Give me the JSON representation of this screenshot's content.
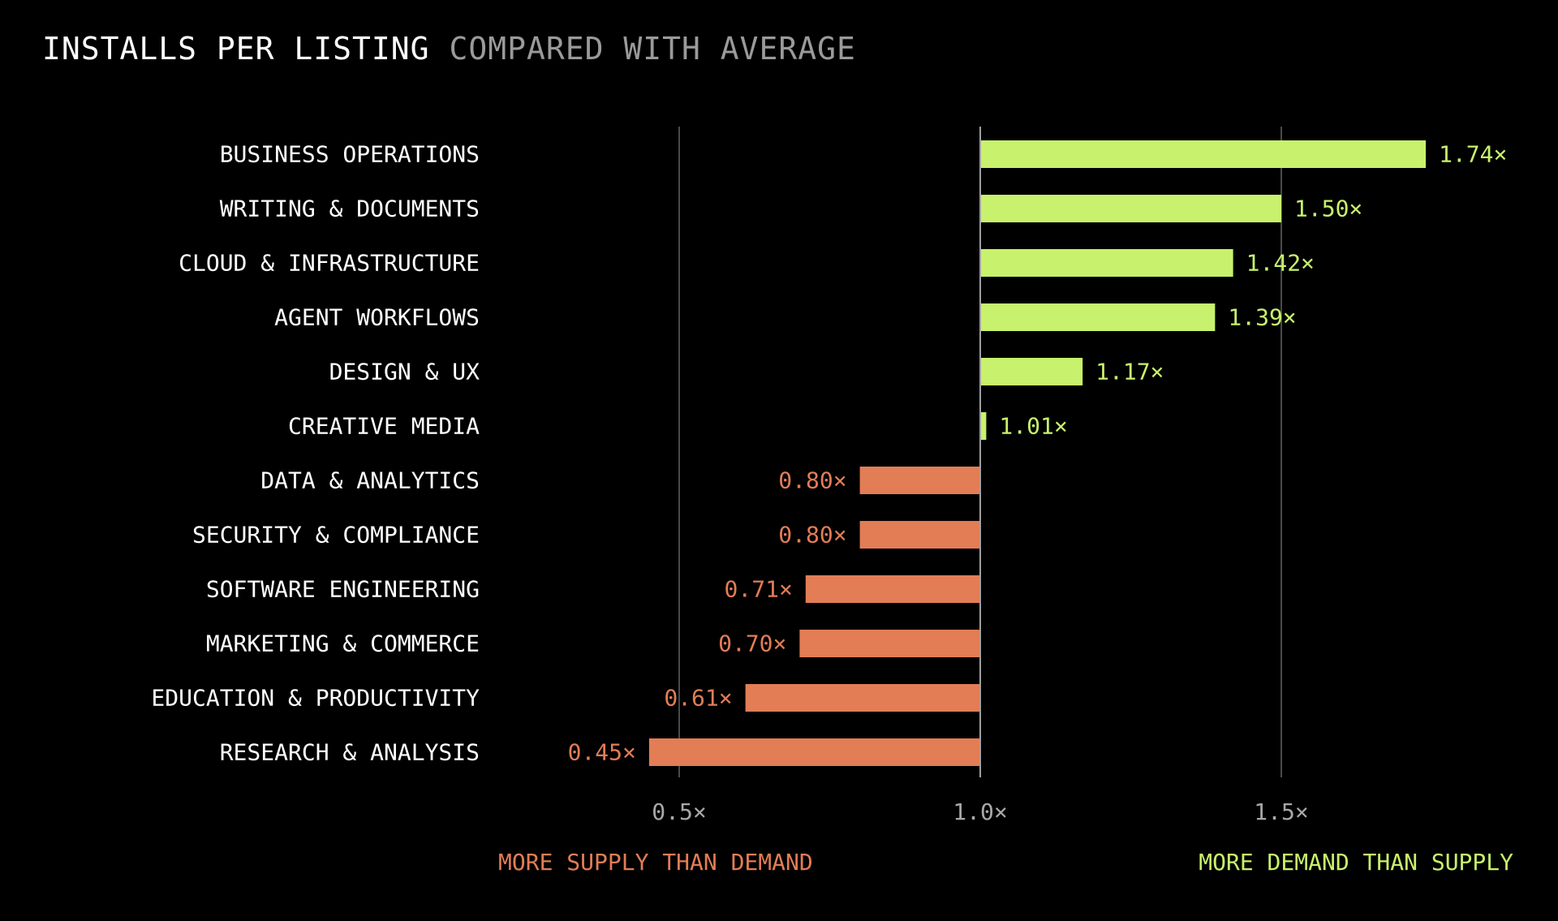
{
  "colors": {
    "background": "#000000",
    "positive": "#c8f26d",
    "negative": "#e27d56",
    "gridline": "#4a4a4a",
    "baseline": "#a0a0a0",
    "title": "#ffffff",
    "subtitle": "#9a9a9a",
    "tick": "#a8a8a8",
    "category": "#ffffff"
  },
  "chart_data": {
    "type": "bar",
    "orientation": "horizontal",
    "title": "INSTALLS PER LISTING",
    "subtitle": "COMPARED WITH AVERAGE",
    "baseline": 1.0,
    "xlim": [
      0.0,
      1.74
    ],
    "xticks": [
      0.5,
      1.0,
      1.5
    ],
    "xtick_labels": [
      "0.5×",
      "1.0×",
      "1.5×"
    ],
    "grid": true,
    "categories": [
      "BUSINESS OPERATIONS",
      "WRITING & DOCUMENTS",
      "CLOUD & INFRASTRUCTURE",
      "AGENT WORKFLOWS",
      "DESIGN & UX",
      "CREATIVE MEDIA",
      "DATA & ANALYTICS",
      "SECURITY & COMPLIANCE",
      "SOFTWARE ENGINEERING",
      "MARKETING & COMMERCE",
      "EDUCATION & PRODUCTIVITY",
      "RESEARCH & ANALYSIS"
    ],
    "values": [
      1.74,
      1.5,
      1.42,
      1.39,
      1.17,
      1.01,
      0.8,
      0.8,
      0.71,
      0.7,
      0.61,
      0.45
    ],
    "value_labels": [
      "1.74×",
      "1.50×",
      "1.42×",
      "1.39×",
      "1.17×",
      "1.01×",
      "0.80×",
      "0.80×",
      "0.71×",
      "0.70×",
      "0.61×",
      "0.45×"
    ],
    "annotations": {
      "left": "MORE SUPPLY THAN DEMAND",
      "right": "MORE DEMAND THAN SUPPLY"
    }
  }
}
